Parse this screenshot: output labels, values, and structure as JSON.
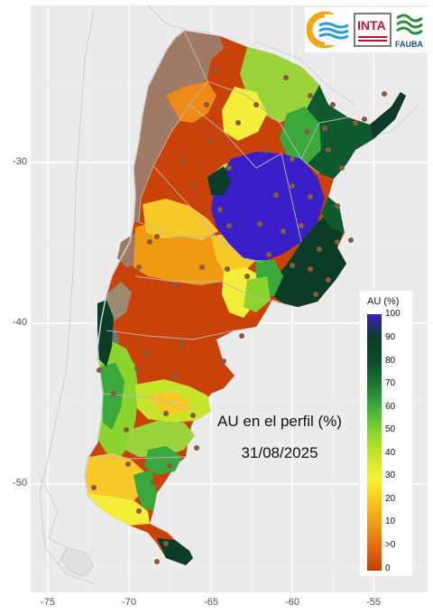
{
  "map": {
    "title": "AU en el perfil (%)",
    "date": "31/08/2025",
    "x_ticks": [
      "-75",
      "-70",
      "-65",
      "-60",
      "-55"
    ],
    "y_ticks": [
      "-30",
      "-40",
      "-50"
    ],
    "background_color": "#ebebeb"
  },
  "logos": {
    "inta": "INTA",
    "fauba": "FAUBA"
  },
  "legend": {
    "title": "AU (%)",
    "labels": [
      "100",
      "90",
      "80",
      "70",
      "60",
      "50",
      "40",
      "30",
      "20",
      "10",
      ">0",
      "0"
    ],
    "colors": [
      "#3a1ec8",
      "#0f3b2c",
      "#0d4a2b",
      "#1e7a34",
      "#3fb23f",
      "#8bd32d",
      "#c7e62b",
      "#f6f236",
      "#f7c61b",
      "#f09a14",
      "#e36a0d",
      "#c33d09"
    ]
  },
  "region_colors": {
    "no_data": "#a07a66",
    "very_dry": "#c8420a",
    "dry": "#ef8a1a",
    "low": "#f8c829",
    "medium_low": "#f4ee3a",
    "medium": "#9bd43a",
    "medium_high": "#3aa83c",
    "high": "#0f5a2e",
    "very_high": "#0c3b28",
    "saturated": "#3a1ec8",
    "station": "#8a5a3c"
  }
}
